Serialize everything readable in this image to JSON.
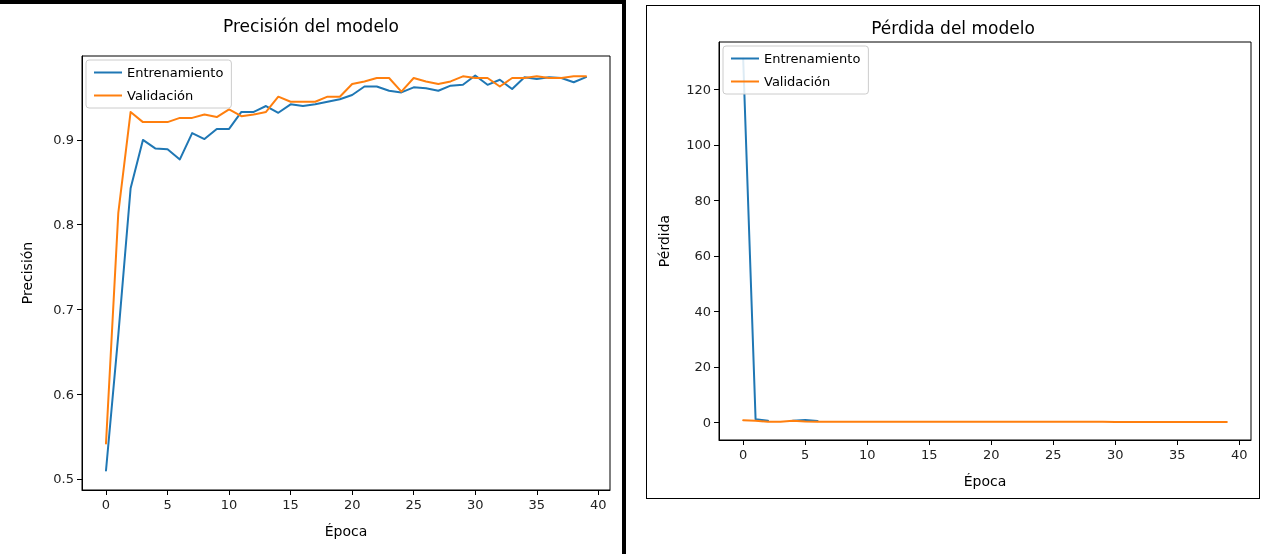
{
  "chart_data": [
    {
      "type": "line",
      "title": "Precisión del modelo",
      "xlabel": "Época",
      "ylabel": "Precisión",
      "x": [
        0,
        1,
        2,
        3,
        4,
        5,
        6,
        7,
        8,
        9,
        10,
        11,
        12,
        13,
        14,
        15,
        16,
        17,
        18,
        19,
        20,
        21,
        22,
        23,
        24,
        25,
        26,
        27,
        28,
        29,
        30,
        31,
        32,
        33,
        34,
        35,
        36,
        37,
        38,
        39
      ],
      "series": [
        {
          "name": "Entrenamiento",
          "color": "#1f77b4",
          "values": [
            0.51,
            0.67,
            0.843,
            0.9,
            0.89,
            0.889,
            0.877,
            0.908,
            0.901,
            0.913,
            0.913,
            0.933,
            0.933,
            0.94,
            0.932,
            0.942,
            0.94,
            0.942,
            0.945,
            0.948,
            0.953,
            0.963,
            0.963,
            0.958,
            0.956,
            0.962,
            0.961,
            0.958,
            0.964,
            0.965,
            0.976,
            0.965,
            0.971,
            0.96,
            0.974,
            0.972,
            0.974,
            0.973,
            0.968,
            0.974
          ]
        },
        {
          "name": "Validación",
          "color": "#ff7f0e",
          "values": [
            0.542,
            0.814,
            0.933,
            0.921,
            0.921,
            0.921,
            0.926,
            0.926,
            0.93,
            0.927,
            0.936,
            0.928,
            0.93,
            0.933,
            0.951,
            0.945,
            0.945,
            0.945,
            0.951,
            0.951,
            0.966,
            0.969,
            0.973,
            0.973,
            0.957,
            0.973,
            0.969,
            0.966,
            0.969,
            0.975,
            0.973,
            0.973,
            0.963,
            0.973,
            0.973,
            0.975,
            0.973,
            0.973,
            0.975,
            0.975
          ]
        }
      ],
      "xlim": [
        -1.95,
        40.95
      ],
      "xticks": [
        0,
        5,
        10,
        15,
        20,
        25,
        30,
        35,
        40
      ],
      "ylim": [
        0.487,
        0.999
      ],
      "yticks": [
        0.5,
        0.6,
        0.7,
        0.8,
        0.9
      ],
      "legend": "top left",
      "grid": false
    },
    {
      "type": "line",
      "title": "Pérdida del modelo",
      "xlabel": "Época",
      "ylabel": "Pérdida",
      "x": [
        0,
        1,
        2,
        3,
        4,
        5,
        6,
        7,
        8,
        9,
        10,
        11,
        12,
        13,
        14,
        15,
        16,
        17,
        18,
        19,
        20,
        21,
        22,
        23,
        24,
        25,
        26,
        27,
        28,
        29,
        30,
        31,
        32,
        33,
        34,
        35,
        36,
        37,
        38,
        39
      ],
      "series": [
        {
          "name": "Entrenamiento",
          "color": "#1f77b4",
          "values": [
            131,
            1.2,
            0.6,
            null,
            0.6,
            0.9,
            0.5,
            null,
            null,
            null,
            null,
            null,
            null,
            null,
            null,
            null,
            null,
            null,
            null,
            null,
            null,
            null,
            null,
            null,
            null,
            null,
            null,
            null,
            null,
            null,
            null,
            null,
            null,
            null,
            null,
            null,
            null,
            null,
            null,
            null
          ]
        },
        {
          "name": "Validación",
          "color": "#ff7f0e",
          "values": [
            0.8,
            0.6,
            0.3,
            0.3,
            0.6,
            0.4,
            0.3,
            0.3,
            0.3,
            0.3,
            0.3,
            0.3,
            0.3,
            0.3,
            0.3,
            0.3,
            0.3,
            0.3,
            0.3,
            0.3,
            0.3,
            0.3,
            0.3,
            0.3,
            0.3,
            0.3,
            0.3,
            0.3,
            0.3,
            0.3,
            0.2,
            0.2,
            0.2,
            0.2,
            0.2,
            0.2,
            0.2,
            0.2,
            0.2,
            0.2
          ]
        }
      ],
      "xlim": [
        -1.95,
        40.95
      ],
      "xticks": [
        0,
        5,
        10,
        15,
        20,
        25,
        30,
        35,
        40
      ],
      "ylim": [
        -6.3,
        137
      ],
      "yticks": [
        0,
        20,
        40,
        60,
        80,
        100,
        120
      ],
      "legend": "top left",
      "grid": false
    }
  ]
}
